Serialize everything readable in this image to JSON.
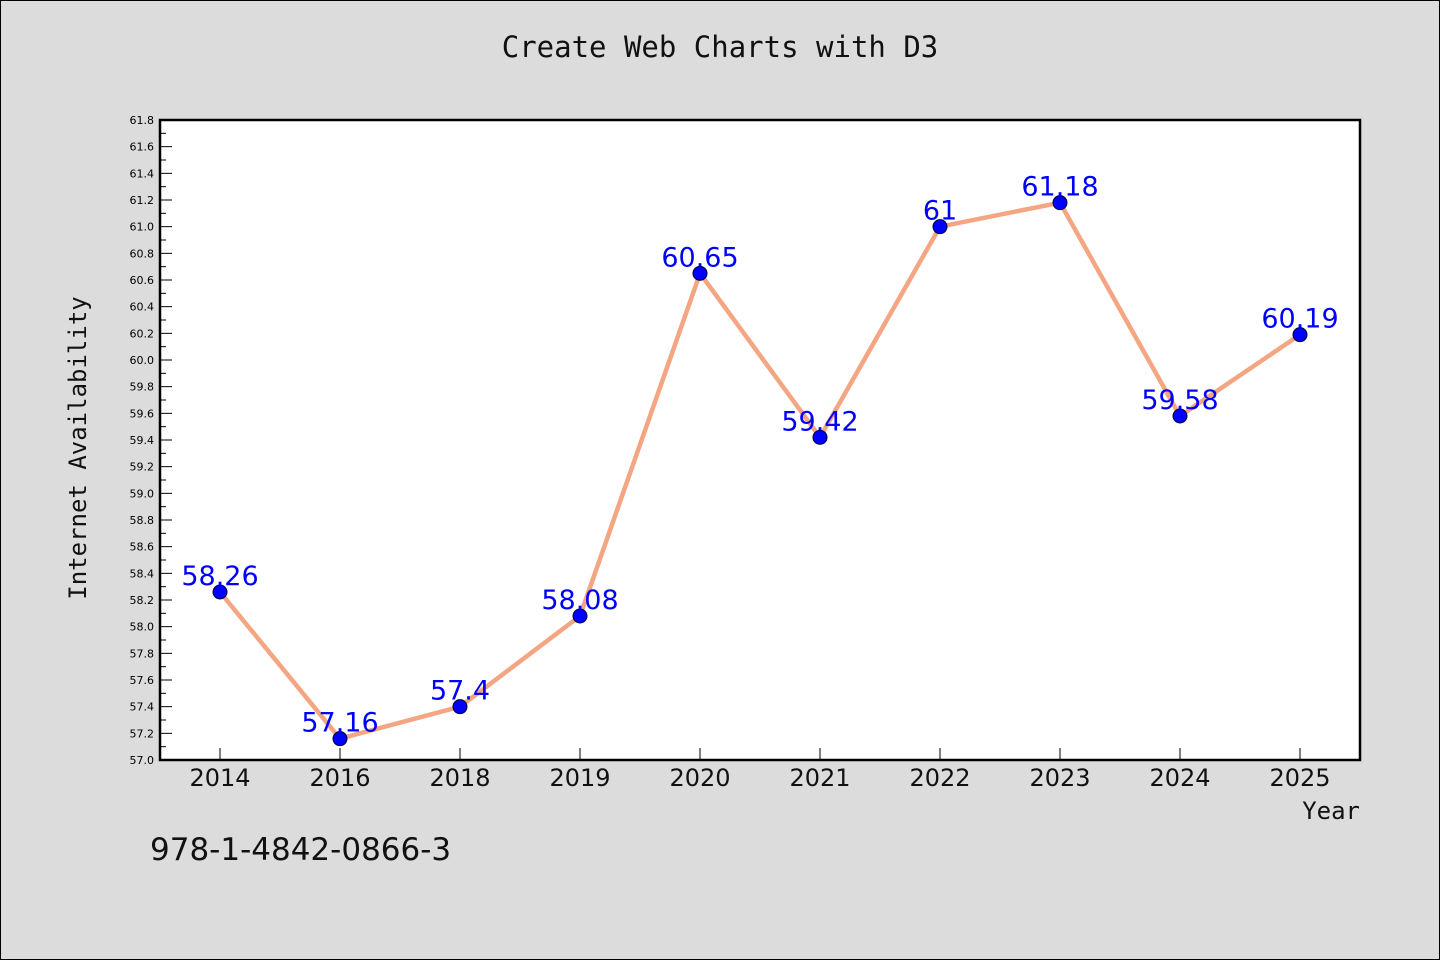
{
  "header": {
    "title": "Create Web Charts with D3"
  },
  "footer": {
    "code": "978-1-4842-0866-3"
  },
  "chart_data": {
    "type": "line",
    "title": "Create Web Charts with D3",
    "xlabel": "Year",
    "ylabel": "Internet Availability",
    "categories": [
      "2014",
      "2016",
      "2018",
      "2019",
      "2020",
      "2021",
      "2022",
      "2023",
      "2024",
      "2025"
    ],
    "values": [
      58.26,
      57.16,
      57.4,
      58.08,
      60.65,
      59.42,
      61,
      61.18,
      59.58,
      60.19
    ],
    "data_labels": [
      "58.26",
      "57.16",
      "57.4",
      "58.08",
      "60.65",
      "59.42",
      "61",
      "61.18",
      "59.58",
      "60.19"
    ],
    "ylim": [
      57.0,
      61.8
    ],
    "yticks": [
      "57.0",
      "57.2",
      "57.4",
      "57.6",
      "57.8",
      "58.0",
      "58.2",
      "58.4",
      "58.6",
      "58.8",
      "59.0",
      "59.2",
      "59.4",
      "59.6",
      "59.8",
      "60.0",
      "60.2",
      "60.4",
      "60.6",
      "60.8",
      "61.0",
      "61.2",
      "61.4",
      "61.6",
      "61.8"
    ],
    "grid": false,
    "line_color": "#f4a582",
    "marker_color": "#0000ff",
    "label_color": "#0000ff"
  }
}
